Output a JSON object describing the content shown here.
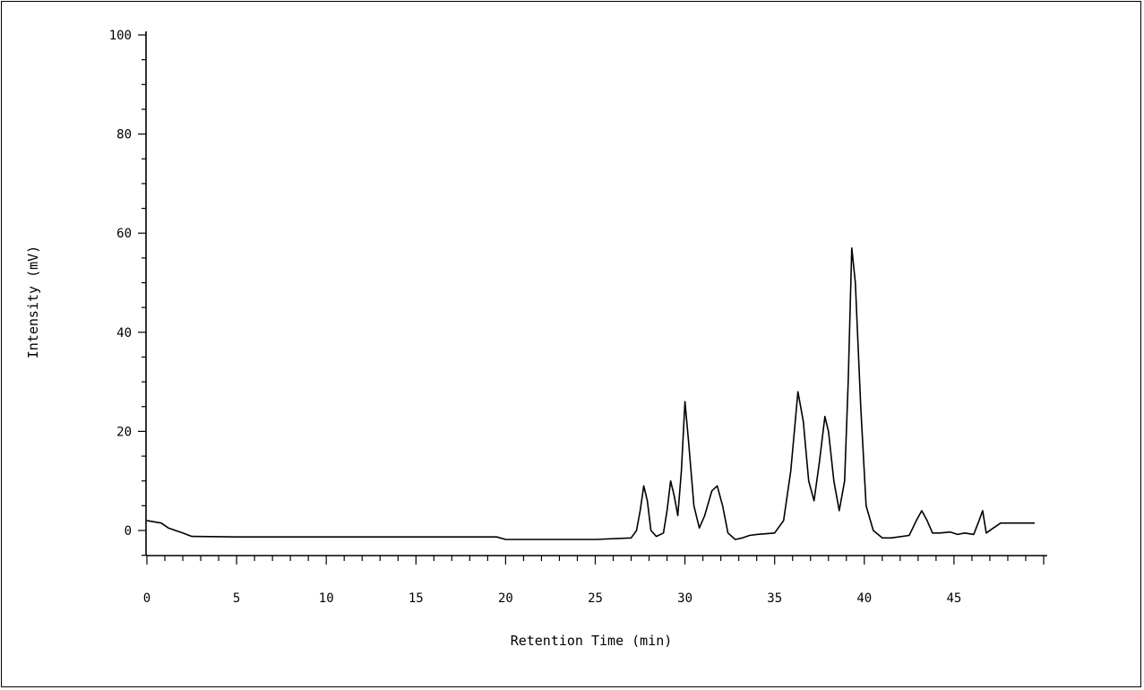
{
  "chart_data": {
    "type": "line",
    "title": "",
    "xlabel": "Retention Time (min)",
    "ylabel": "Intensity (mV)",
    "xlim": [
      0,
      50
    ],
    "ylim": [
      -5,
      100
    ],
    "x_ticks": [
      0,
      5,
      10,
      15,
      20,
      25,
      30,
      35,
      40,
      45
    ],
    "y_ticks": [
      0,
      20,
      40,
      60,
      80,
      100
    ],
    "grid": false,
    "legend": "none",
    "line_color": "#000000",
    "series": [
      {
        "x": [
          0,
          0.8,
          1.2,
          2.0,
          2.5,
          5,
          10,
          15,
          19.5,
          20,
          25,
          27.0,
          27.3,
          27.5,
          27.7,
          27.9,
          28.1,
          28.4,
          28.8,
          29.0,
          29.2,
          29.4,
          29.6,
          29.8,
          30.0,
          30.2,
          30.5,
          30.8,
          31.1,
          31.5,
          31.8,
          32.1,
          32.4,
          32.8,
          33.2,
          33.6,
          34.0,
          35.0,
          35.5,
          35.9,
          36.3,
          36.6,
          36.9,
          37.2,
          37.5,
          37.8,
          38.0,
          38.3,
          38.6,
          38.9,
          39.1,
          39.3,
          39.5,
          39.8,
          40.1,
          40.5,
          41.0,
          41.5,
          42.5,
          42.9,
          43.2,
          43.5,
          43.8,
          44.2,
          44.8,
          45.2,
          45.6,
          46.1,
          46.4,
          46.6,
          46.8,
          47.2,
          47.6,
          48.0,
          49.5
        ],
        "y": [
          2,
          1.5,
          0.5,
          -0.5,
          -1.2,
          -1.3,
          -1.3,
          -1.3,
          -1.3,
          -1.8,
          -1.8,
          -1.5,
          0,
          4,
          9,
          6,
          0,
          -1.2,
          -0.5,
          4,
          10,
          7,
          3,
          12,
          26,
          18,
          5,
          0.5,
          3,
          8,
          9,
          5,
          -0.5,
          -1.8,
          -1.5,
          -1,
          -0.8,
          -0.5,
          2,
          12,
          28,
          22,
          10,
          6,
          14,
          23,
          20,
          10,
          4,
          10,
          30,
          57,
          50,
          25,
          5,
          0,
          -1.5,
          -1.5,
          -1,
          2,
          4,
          2,
          -0.5,
          -0.5,
          -0.3,
          -0.8,
          -0.5,
          -0.8,
          2,
          4,
          -0.5,
          0.5,
          1.5,
          1.5,
          1.5
        ]
      }
    ]
  }
}
